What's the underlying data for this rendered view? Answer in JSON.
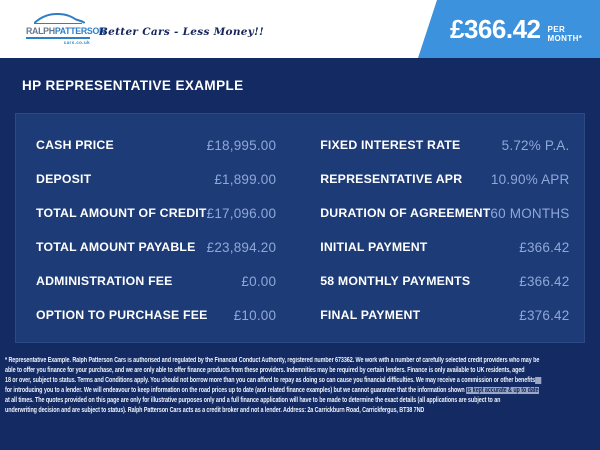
{
  "header": {
    "logo": {
      "name_part1": "RALPH",
      "name_part2": "PATTERSON",
      "domain": "cars.co.uk"
    },
    "tagline": "Better Cars - Less Money!!",
    "banner": {
      "amount": "£366.42",
      "period": "PER MONTH*"
    }
  },
  "section_title": "HP REPRESENTATIVE EXAMPLE",
  "finance_table": {
    "left_column": [
      {
        "label": "CASH PRICE",
        "value": "£18,995.00"
      },
      {
        "label": "DEPOSIT",
        "value": "£1,899.00"
      },
      {
        "label": "TOTAL AMOUNT OF CREDIT",
        "value": "£17,096.00"
      },
      {
        "label": "TOTAL AMOUNT PAYABLE",
        "value": "£23,894.20"
      },
      {
        "label": "ADMINISTRATION FEE",
        "value": "£0.00"
      },
      {
        "label": "OPTION TO PURCHASE FEE",
        "value": "£10.00"
      }
    ],
    "right_column": [
      {
        "label": "FIXED INTEREST RATE",
        "value": "5.72% P.A."
      },
      {
        "label": "REPRESENTATIVE APR",
        "value": "10.90% APR"
      },
      {
        "label": "DURATION OF AGREEMENT",
        "value": "60 MONTHS"
      },
      {
        "label": "INITIAL PAYMENT",
        "value": "£366.42"
      },
      {
        "label": "58 MONTHLY PAYMENTS",
        "value": "£366.42"
      },
      {
        "label": "FINAL PAYMENT",
        "value": "£376.42"
      }
    ]
  },
  "disclaimer": {
    "lines": [
      [
        {
          "text": "* Representative Example. Ralph Patterson Cars is authorised and regulated by the Financial Conduct Authority, registered number 673362. We work with a number of carefully selected credit providers who may be"
        }
      ],
      [
        {
          "text": "able to offer you finance for your purchase, and we are only able to offer finance products from these providers. Indemnities may be required by certain lenders. Finance is only available to UK residents, aged"
        }
      ],
      [
        {
          "text": "18 or over, subject to status. Terms and Conditions apply. You should not borrow more than you can afford to repay as doing so can cause you financial difficulties. We may receive a commission or other benefits"
        },
        {
          "text": "   ",
          "highlight": true
        }
      ],
      [
        {
          "text": "for introducing you to a lender. We will endeavour to keep information on the road prices up to date (and related finance examples) but we cannot guarantee that the information shown "
        },
        {
          "text": "is kept accurate & up to date",
          "highlight": true
        }
      ],
      [
        {
          "text": "at all times. The quotes provided on this page are only for illustrative purposes only and a full finance application will have to be made to determine the exact details (all applications are subject to an"
        }
      ],
      [
        {
          "text": "underwriting decision and are subject to status). Ralph Patterson Cars acts as a credit broker and not a lender. Address: 2a Carrickburn Road, Carrickfergus, BT38 7ND"
        }
      ]
    ]
  },
  "colors": {
    "banner_blue": "#3d92de",
    "navy_background": "#132a63",
    "panel_blue": "#1d3b76",
    "value_text": "#8fa8da",
    "logo_blue": "#2e7fc7",
    "selection_highlight": "#9aa6c4"
  }
}
